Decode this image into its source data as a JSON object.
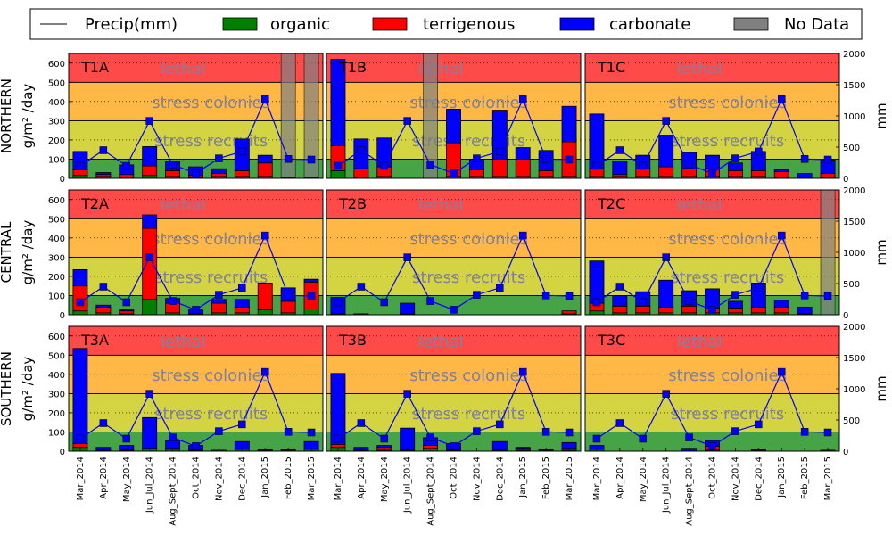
{
  "legend": {
    "precip": "Precip(mm)",
    "organic": "organic",
    "terrigenous": "terrigenous",
    "carbonate": "carbonate",
    "nodata": "No Data"
  },
  "colors": {
    "organic": "#008000",
    "terrigenous": "#ff0000",
    "carbonate": "#0000ff",
    "nodata": "#808080",
    "precip": "#0000ff",
    "zone_lethal": "#ff4a4a",
    "zone_stress_colonies": "#ffb845",
    "zone_stress_recruits": "#d4d442",
    "zone_ok": "#46a346"
  },
  "chart_data": {
    "type": "bar",
    "stacked": true,
    "months": [
      "Mar_2014",
      "Apr_2014",
      "May_2014",
      "Jun_Jul_2014",
      "Aug_Sept_2014",
      "Oct_2014",
      "Nov_2014",
      "Dec_2014",
      "Jan_2015",
      "Feb_2015",
      "Mar_2015"
    ],
    "row_labels": [
      "NORTHERN",
      "CENTRAL",
      "SOUTHERN"
    ],
    "ylabel": "g/m² /day",
    "ylabel_right": "mm",
    "ylim": [
      0,
      650
    ],
    "yticks": [
      0,
      100,
      200,
      300,
      400,
      500,
      600
    ],
    "ylim_right": [
      0,
      2000
    ],
    "yticks_right": [
      0,
      500,
      1000,
      1500,
      2000
    ],
    "grid": "horizontal dotted",
    "legend_position": "top",
    "zones": [
      {
        "label": "",
        "from": 0,
        "to": 100,
        "key": "zone_ok"
      },
      {
        "label": "stress recruits",
        "from": 100,
        "to": 300,
        "key": "zone_stress_recruits"
      },
      {
        "label": "stress colonies",
        "from": 300,
        "to": 500,
        "key": "zone_stress_colonies"
      },
      {
        "label": "lethal",
        "from": 500,
        "to": 650,
        "key": "zone_lethal"
      }
    ],
    "precip_mm": [
      200,
      450,
      200,
      920,
      220,
      80,
      320,
      430,
      1270,
      310,
      300
    ],
    "panels": [
      {
        "label": "T1A",
        "row": 0,
        "col": 0,
        "nodata": [
          9,
          10
        ],
        "organic": [
          15,
          10,
          5,
          15,
          10,
          5,
          10,
          10,
          10,
          5,
          5
        ],
        "terrigenous": [
          30,
          10,
          15,
          50,
          30,
          10,
          15,
          30,
          70,
          0,
          0
        ],
        "carbonate": [
          95,
          10,
          50,
          100,
          50,
          45,
          25,
          165,
          40,
          0,
          0
        ]
      },
      {
        "label": "T1B",
        "row": 0,
        "col": 1,
        "nodata": [
          4
        ],
        "organic": [
          40,
          5,
          10,
          0,
          0,
          10,
          10,
          10,
          10,
          10,
          10
        ],
        "terrigenous": [
          130,
          45,
          50,
          0,
          0,
          175,
          35,
          90,
          90,
          30,
          180
        ],
        "carbonate": [
          450,
          155,
          150,
          0,
          0,
          175,
          55,
          255,
          60,
          105,
          185
        ]
      },
      {
        "label": "T1C",
        "row": 0,
        "col": 2,
        "nodata": [],
        "organic": [
          10,
          10,
          10,
          10,
          10,
          10,
          10,
          10,
          5,
          5,
          5
        ],
        "terrigenous": [
          40,
          10,
          40,
          50,
          40,
          40,
          30,
          30,
          30,
          0,
          20
        ],
        "carbonate": [
          285,
          70,
          70,
          165,
          85,
          70,
          40,
          100,
          10,
          20,
          70
        ]
      },
      {
        "label": "T2A",
        "row": 1,
        "col": 0,
        "nodata": [],
        "organic": [
          20,
          10,
          5,
          80,
          10,
          5,
          10,
          10,
          25,
          10,
          30
        ],
        "terrigenous": [
          130,
          30,
          15,
          370,
          50,
          0,
          50,
          30,
          140,
          60,
          140
        ],
        "carbonate": [
          85,
          10,
          5,
          70,
          25,
          20,
          20,
          40,
          0,
          70,
          15
        ]
      },
      {
        "label": "T2B",
        "row": 1,
        "col": 1,
        "nodata": [],
        "organic": [
          5,
          5,
          0,
          5,
          0,
          0,
          0,
          0,
          0,
          0,
          5
        ],
        "terrigenous": [
          0,
          0,
          0,
          0,
          0,
          0,
          0,
          0,
          0,
          0,
          15
        ],
        "carbonate": [
          85,
          0,
          0,
          55,
          0,
          0,
          0,
          0,
          0,
          0,
          0
        ]
      },
      {
        "label": "T2C",
        "row": 1,
        "col": 2,
        "nodata": [
          10
        ],
        "organic": [
          20,
          10,
          10,
          10,
          10,
          10,
          10,
          10,
          10,
          5,
          0
        ],
        "terrigenous": [
          40,
          35,
          35,
          30,
          35,
          25,
          25,
          30,
          30,
          0,
          0
        ],
        "carbonate": [
          220,
          55,
          75,
          140,
          80,
          100,
          35,
          125,
          35,
          35,
          0
        ]
      },
      {
        "label": "T3A",
        "row": 2,
        "col": 0,
        "nodata": [],
        "organic": [
          20,
          5,
          5,
          15,
          10,
          5,
          5,
          10,
          5,
          5,
          10
        ],
        "terrigenous": [
          20,
          0,
          5,
          0,
          5,
          0,
          0,
          0,
          0,
          0,
          0
        ],
        "carbonate": [
          495,
          15,
          20,
          160,
          40,
          25,
          0,
          40,
          5,
          5,
          40
        ]
      },
      {
        "label": "T3B",
        "row": 2,
        "col": 1,
        "nodata": [],
        "organic": [
          20,
          5,
          5,
          5,
          15,
          5,
          0,
          5,
          5,
          5,
          5
        ],
        "terrigenous": [
          15,
          0,
          15,
          0,
          15,
          0,
          0,
          0,
          10,
          0,
          10
        ],
        "carbonate": [
          370,
          15,
          10,
          115,
          40,
          35,
          0,
          45,
          5,
          5,
          30
        ]
      },
      {
        "label": "T3C",
        "row": 2,
        "col": 2,
        "nodata": [],
        "organic": [
          10,
          0,
          0,
          0,
          0,
          5,
          0,
          5,
          0,
          0,
          5
        ],
        "terrigenous": [
          0,
          0,
          0,
          0,
          0,
          20,
          0,
          0,
          0,
          0,
          0
        ],
        "carbonate": [
          20,
          0,
          0,
          0,
          15,
          30,
          0,
          5,
          0,
          0,
          0
        ]
      }
    ]
  }
}
